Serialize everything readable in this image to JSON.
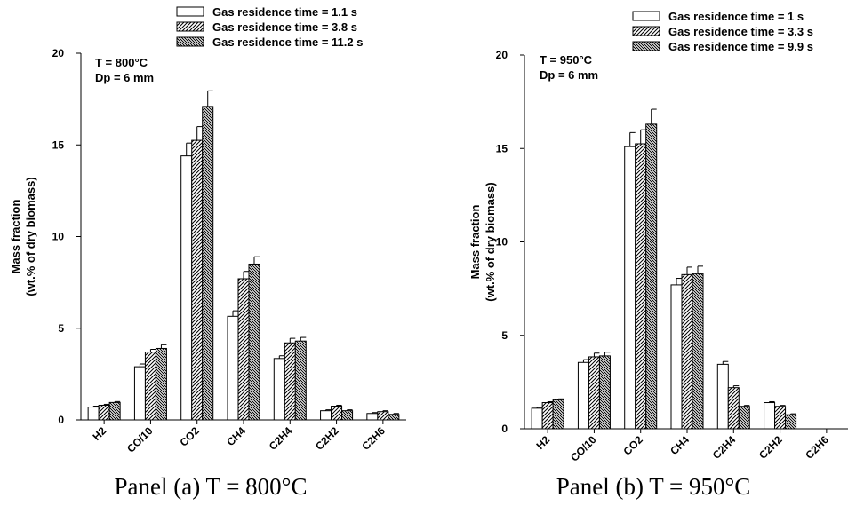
{
  "chart_data": [
    {
      "type": "bar",
      "caption": "Panel (a) T =  800°C",
      "ylabel_lines": [
        "Mass fraction",
        "(wt.% of dry biomass)"
      ],
      "annotations": [
        "T = 800°C",
        "Dp = 6 mm"
      ],
      "categories": [
        "H2",
        "CO/10",
        "CO2",
        "CH4",
        "C2H4",
        "C2H2",
        "C2H6"
      ],
      "ylim": [
        0,
        20
      ],
      "yticks": [
        0,
        5,
        10,
        15,
        20
      ],
      "legend_position": "top-right",
      "series": [
        {
          "name": "Gas residence time = 1.1 s",
          "pattern": "none",
          "values": [
            0.7,
            2.9,
            14.4,
            5.65,
            3.35,
            0.5,
            0.35
          ],
          "errors": [
            0.05,
            0.15,
            0.7,
            0.3,
            0.15,
            0.05,
            0.05
          ]
        },
        {
          "name": "Gas residence time = 3.8 s",
          "pattern": "diag",
          "values": [
            0.8,
            3.7,
            15.25,
            7.7,
            4.2,
            0.75,
            0.45
          ],
          "errors": [
            0.05,
            0.15,
            0.75,
            0.4,
            0.25,
            0.05,
            0.05
          ]
        },
        {
          "name": "Gas residence time = 11.2 s",
          "pattern": "dense-diag",
          "values": [
            0.95,
            3.9,
            17.1,
            8.5,
            4.3,
            0.5,
            0.3
          ],
          "errors": [
            0.05,
            0.2,
            0.85,
            0.4,
            0.2,
            0.05,
            0.05
          ]
        }
      ]
    },
    {
      "type": "bar",
      "caption": "Panel (b) T = 950°C",
      "ylabel_lines": [
        "Mass fraction",
        "(wt.% of dry biomass)"
      ],
      "annotations": [
        "T = 950°C",
        "Dp = 6 mm"
      ],
      "categories": [
        "H2",
        "CO/10",
        "CO2",
        "CH4",
        "C2H4",
        "C2H2",
        "C2H6"
      ],
      "ylim": [
        0,
        20
      ],
      "yticks": [
        0,
        5,
        10,
        15,
        20
      ],
      "legend_position": "top-right",
      "series": [
        {
          "name": "Gas residence time = 1 s",
          "pattern": "none",
          "values": [
            1.1,
            3.55,
            15.1,
            7.7,
            3.45,
            1.4,
            0
          ],
          "errors": [
            0.05,
            0.15,
            0.75,
            0.35,
            0.15,
            0.05,
            0
          ]
        },
        {
          "name": "Gas residence time = 3.3 s",
          "pattern": "diag",
          "values": [
            1.4,
            3.85,
            15.25,
            8.25,
            2.2,
            1.2,
            0
          ],
          "errors": [
            0.05,
            0.2,
            0.75,
            0.4,
            0.1,
            0.05,
            0
          ]
        },
        {
          "name": "Gas residence time = 9.9 s",
          "pattern": "dense-diag",
          "values": [
            1.55,
            3.9,
            16.3,
            8.3,
            1.2,
            0.75,
            0
          ],
          "errors": [
            0.05,
            0.2,
            0.8,
            0.4,
            0.05,
            0.05,
            0
          ]
        }
      ]
    }
  ]
}
